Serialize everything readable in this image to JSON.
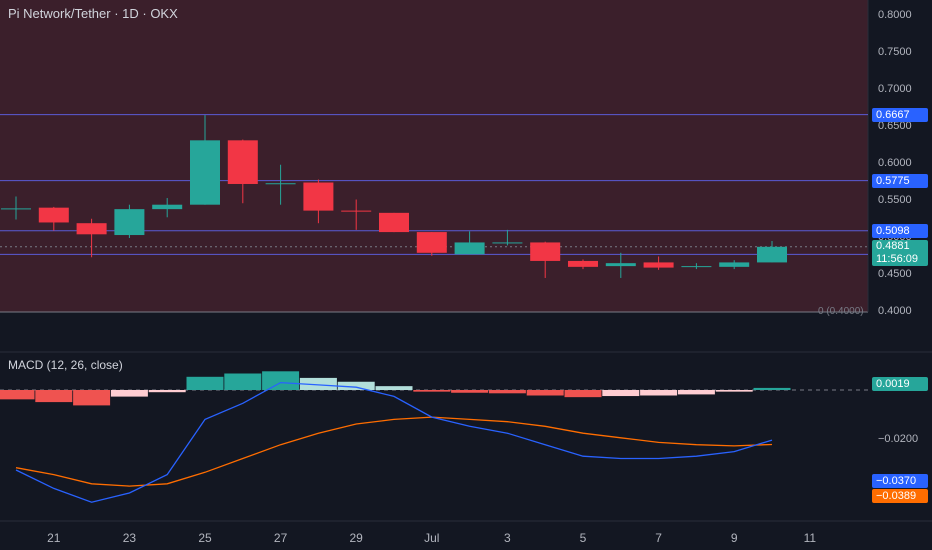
{
  "header": {
    "title": "Pi Network/Tether · 1D · OKX"
  },
  "macd": {
    "title": "MACD (12, 26, close)",
    "histogram_label": "0.0019",
    "macd_label": "−0.0370",
    "signal_label": "−0.0389",
    "axis_label": "−0.0200",
    "colors": {
      "macd_line": "#2962ff",
      "signal_line": "#ff6d00",
      "hist_pos_strong": "#26a69a",
      "hist_pos_weak": "#b2dfdb",
      "hist_neg_strong": "#ef5350",
      "hist_neg_weak": "#ffcdd2"
    }
  },
  "price_axis": {
    "ticks": [
      "0.8000",
      "0.7500",
      "0.7000",
      "0.6500",
      "0.6000",
      "0.5500",
      "0.5000",
      "0.4500",
      "0.4000"
    ],
    "level_tags": [
      {
        "label": "0.6667",
        "value": 0.6667
      },
      {
        "label": "0.5775",
        "value": 0.5775
      },
      {
        "label": "0.5098",
        "value": 0.5098
      },
      {
        "label": "0.4778",
        "value": 0.4778
      }
    ],
    "current_price": "0.4881",
    "countdown": "11:56:09",
    "fib_zero_label": "0 (0.4000)"
  },
  "x_axis": {
    "labels": [
      "21",
      "23",
      "25",
      "27",
      "29",
      "Jul",
      "3",
      "5",
      "7",
      "9",
      "11"
    ]
  },
  "colors": {
    "up": "#26a69a",
    "down": "#f23645",
    "level_line": "#5b5bd6",
    "tag_blue": "#2962ff",
    "background": "#131722",
    "zone": "#3b1f2b"
  },
  "chart_data": {
    "type": "candlestick",
    "title": "Pi Network/Tether · 1D · OKX",
    "x_labels": [
      "21",
      "23",
      "25",
      "27",
      "29",
      "Jul",
      "3",
      "5",
      "7",
      "9",
      "11"
    ],
    "ylim": [
      0.4,
      0.8
    ],
    "horizontal_levels": [
      0.6667,
      0.5775,
      0.5098,
      0.4778
    ],
    "candles": [
      {
        "o": 0.54,
        "h": 0.556,
        "l": 0.525,
        "c": 0.54
      },
      {
        "o": 0.541,
        "h": 0.542,
        "l": 0.51,
        "c": 0.521
      },
      {
        "o": 0.52,
        "h": 0.526,
        "l": 0.474,
        "c": 0.505
      },
      {
        "o": 0.504,
        "h": 0.545,
        "l": 0.5,
        "c": 0.539
      },
      {
        "o": 0.539,
        "h": 0.554,
        "l": 0.528,
        "c": 0.545
      },
      {
        "o": 0.545,
        "h": 0.666,
        "l": 0.545,
        "c": 0.632
      },
      {
        "o": 0.632,
        "h": 0.633,
        "l": 0.547,
        "c": 0.573
      },
      {
        "o": 0.573,
        "h": 0.599,
        "l": 0.545,
        "c": 0.574
      },
      {
        "o": 0.575,
        "h": 0.579,
        "l": 0.52,
        "c": 0.537
      },
      {
        "o": 0.537,
        "h": 0.552,
        "l": 0.511,
        "c": 0.536
      },
      {
        "o": 0.534,
        "h": 0.534,
        "l": 0.508,
        "c": 0.508
      },
      {
        "o": 0.508,
        "h": 0.508,
        "l": 0.476,
        "c": 0.48
      },
      {
        "o": 0.478,
        "h": 0.509,
        "l": 0.478,
        "c": 0.494
      },
      {
        "o": 0.494,
        "h": 0.511,
        "l": 0.49,
        "c": 0.494
      },
      {
        "o": 0.494,
        "h": 0.495,
        "l": 0.446,
        "c": 0.469
      },
      {
        "o": 0.469,
        "h": 0.471,
        "l": 0.458,
        "c": 0.461
      },
      {
        "o": 0.462,
        "h": 0.48,
        "l": 0.446,
        "c": 0.466
      },
      {
        "o": 0.467,
        "h": 0.475,
        "l": 0.457,
        "c": 0.46
      },
      {
        "o": 0.461,
        "h": 0.466,
        "l": 0.458,
        "c": 0.462
      },
      {
        "o": 0.461,
        "h": 0.47,
        "l": 0.458,
        "c": 0.467
      },
      {
        "o": 0.467,
        "h": 0.496,
        "l": 0.467,
        "c": 0.4881
      }
    ],
    "macd_histogram": [
      -0.0085,
      -0.011,
      -0.014,
      -0.006,
      -0.002,
      0.012,
      0.015,
      0.017,
      0.011,
      0.0075,
      0.0035,
      -0.0015,
      -0.0025,
      -0.003,
      -0.005,
      -0.0065,
      -0.0055,
      -0.005,
      -0.004,
      -0.0015,
      0.0019
    ],
    "macd_line": [
      -0.05,
      -0.058,
      -0.064,
      -0.06,
      -0.052,
      -0.028,
      -0.021,
      -0.012,
      -0.013,
      -0.014,
      -0.018,
      -0.027,
      -0.031,
      -0.034,
      -0.039,
      -0.044,
      -0.045,
      -0.045,
      -0.044,
      -0.042,
      -0.037
    ],
    "signal_line": [
      -0.049,
      -0.052,
      -0.056,
      -0.057,
      -0.056,
      -0.051,
      -0.045,
      -0.039,
      -0.034,
      -0.03,
      -0.028,
      -0.027,
      -0.028,
      -0.029,
      -0.031,
      -0.034,
      -0.036,
      -0.038,
      -0.039,
      -0.0395,
      -0.0389
    ]
  }
}
